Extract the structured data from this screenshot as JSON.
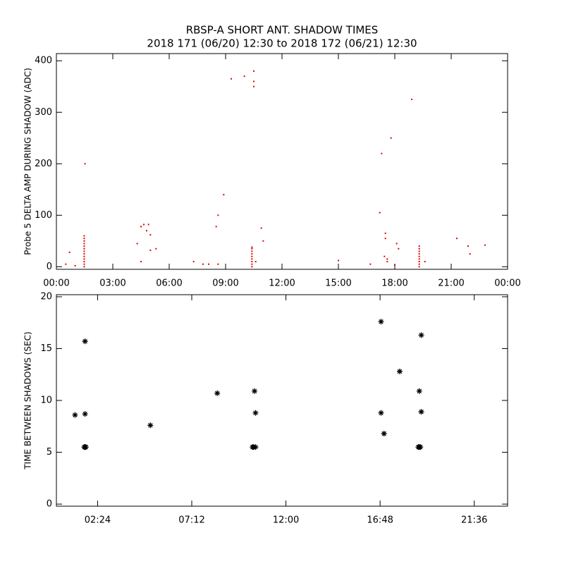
{
  "chart_data": [
    {
      "type": "scatter",
      "title": "RBSP-A SHORT ANT. SHADOW TIMES",
      "subtitle": "2018 171 (06/20) 12:30 to 2018 172 (06/21) 12:30",
      "ylabel": "Probe 5 DELTA AMP DURING SHADOW (ADC)",
      "color": "#e00000",
      "marker": "dot",
      "xlim": [
        0,
        24
      ],
      "ylim": [
        -5,
        414
      ],
      "xticks": [
        {
          "value": 0,
          "label": "00:00"
        },
        {
          "value": 3,
          "label": "03:00"
        },
        {
          "value": 6,
          "label": "06:00"
        },
        {
          "value": 9,
          "label": "09:00"
        },
        {
          "value": 12,
          "label": "12:00"
        },
        {
          "value": 15,
          "label": "15:00"
        },
        {
          "value": 18,
          "label": "18:00"
        },
        {
          "value": 21,
          "label": "21:00"
        },
        {
          "value": 24,
          "label": "00:00"
        }
      ],
      "yticks": [
        0,
        100,
        200,
        300,
        400
      ],
      "x": [
        0.5,
        0.7,
        1.0,
        1.48,
        1.48,
        1.48,
        1.48,
        1.48,
        1.48,
        1.48,
        1.48,
        1.48,
        1.48,
        1.48,
        1.48,
        1.48,
        1.52,
        4.3,
        4.5,
        4.65,
        4.8,
        4.9,
        5.0,
        5.0,
        5.3,
        4.5,
        7.3,
        7.8,
        8.1,
        8.6,
        8.5,
        8.9,
        8.6,
        9.3,
        10.0,
        10.4,
        10.4,
        10.4,
        10.4,
        10.4,
        10.4,
        10.4,
        10.4,
        10.4,
        10.5,
        10.5,
        10.5,
        10.9,
        11.0,
        10.6,
        15.0,
        16.7,
        17.2,
        17.3,
        17.5,
        17.5,
        17.45,
        17.6,
        17.6,
        17.8,
        18.1,
        18.2,
        18.0,
        18.9,
        19.3,
        19.3,
        19.3,
        19.3,
        19.3,
        19.3,
        19.3,
        19.3,
        19.3,
        21.3,
        21.9,
        22.0,
        22.8,
        19.6
      ],
      "values": [
        5,
        28,
        2,
        0,
        5,
        10,
        15,
        20,
        25,
        30,
        35,
        40,
        45,
        50,
        55,
        60,
        200,
        45,
        78,
        82,
        70,
        82,
        62,
        32,
        35,
        10,
        10,
        5,
        5,
        100,
        78,
        140,
        5,
        365,
        370,
        0,
        5,
        10,
        15,
        20,
        25,
        30,
        35,
        38,
        380,
        360,
        350,
        75,
        50,
        10,
        12,
        5,
        105,
        220,
        65,
        55,
        20,
        15,
        10,
        250,
        45,
        35,
        3,
        325,
        0,
        5,
        10,
        15,
        20,
        25,
        30,
        35,
        40,
        55,
        40,
        25,
        42,
        10
      ]
    },
    {
      "type": "scatter",
      "ylabel": "TIME BETWEEN SHADOWS (SEC)",
      "color": "#000000",
      "marker": "asterisk",
      "xlim": [
        0.3,
        23.3
      ],
      "ylim": [
        -0.2,
        20.2
      ],
      "xticks": [
        {
          "value": 2.4,
          "label": "02:24"
        },
        {
          "value": 7.2,
          "label": "07:12"
        },
        {
          "value": 12,
          "label": "12:00"
        },
        {
          "value": 16.8,
          "label": "16:48"
        },
        {
          "value": 21.6,
          "label": "21:36"
        }
      ],
      "yticks": [
        0,
        5,
        10,
        15,
        20
      ],
      "x": [
        1.25,
        1.76,
        1.76,
        1.72,
        1.76,
        1.8,
        5.09,
        8.5,
        10.4,
        10.45,
        10.3,
        10.35,
        10.45,
        16.85,
        16.85,
        17.0,
        17.8,
        18.8,
        18.9,
        18.9,
        18.75,
        18.8,
        18.85
      ],
      "values": [
        8.6,
        8.7,
        15.7,
        5.5,
        5.5,
        5.5,
        7.6,
        10.7,
        10.9,
        8.8,
        5.5,
        5.5,
        5.5,
        17.6,
        8.8,
        6.8,
        12.8,
        10.9,
        8.9,
        16.3,
        5.5,
        5.5,
        5.5
      ]
    }
  ]
}
